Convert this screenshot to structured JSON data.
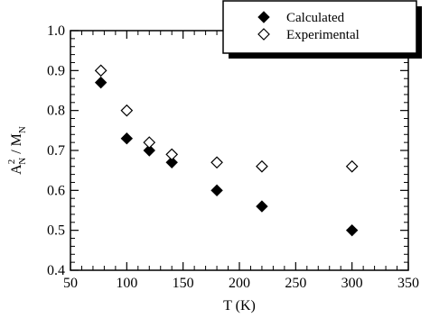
{
  "chart_data": {
    "type": "scatter",
    "xlabel": "T (K)",
    "ylabel_parts": {
      "a": "A",
      "sup": "2",
      "sub1": "N",
      "sep": " / M",
      "sub2": "N"
    },
    "xlim": [
      50,
      350
    ],
    "ylim": [
      0.4,
      1.0
    ],
    "x_ticks": [
      50,
      100,
      150,
      200,
      250,
      300,
      350
    ],
    "x_tick_labels": [
      "50",
      "100",
      "150",
      "200",
      "250",
      "300",
      "350"
    ],
    "y_ticks": [
      0.4,
      0.5,
      0.6,
      0.7,
      0.8,
      0.9,
      1.0
    ],
    "y_tick_labels": [
      "0.4",
      "0.5",
      "0.6",
      "0.7",
      "0.8",
      "0.9",
      "1.0"
    ],
    "legend_position": "top-right",
    "series": [
      {
        "name": "Calculated",
        "marker": "filled-diamond",
        "color": "#000000",
        "x": [
          77,
          100,
          120,
          140,
          180,
          220,
          300
        ],
        "y": [
          0.87,
          0.73,
          0.7,
          0.67,
          0.6,
          0.56,
          0.5
        ]
      },
      {
        "name": "Experimental",
        "marker": "open-diamond",
        "color": "#000000",
        "x": [
          77,
          100,
          120,
          140,
          180,
          220,
          300
        ],
        "y": [
          0.9,
          0.8,
          0.72,
          0.69,
          0.67,
          0.66,
          0.66
        ]
      }
    ]
  }
}
